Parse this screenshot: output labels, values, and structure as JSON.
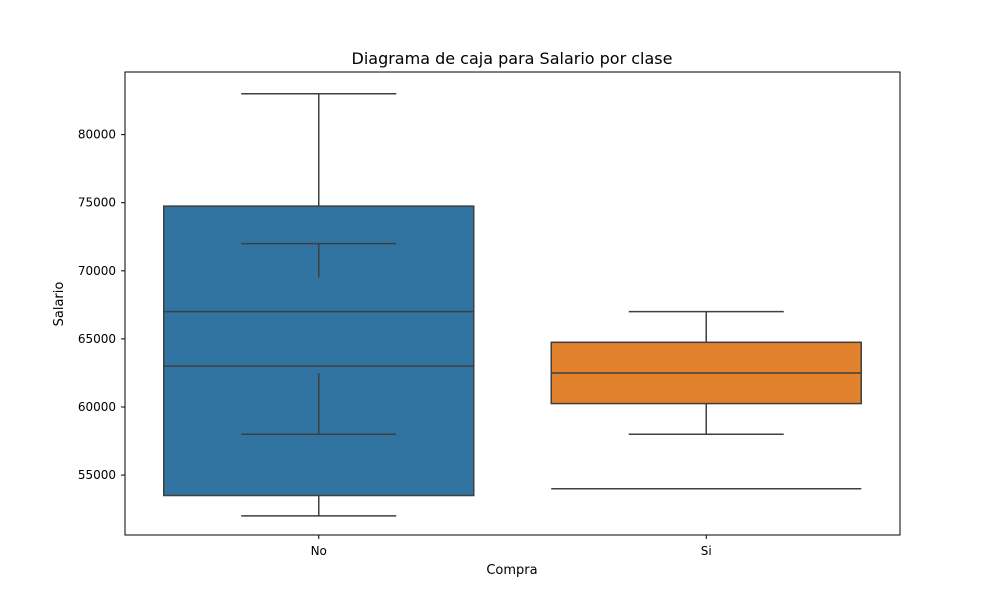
{
  "chart_data": {
    "type": "box",
    "title": "Diagrama de caja para Salario por clase",
    "xlabel": "Compra",
    "ylabel": "Salario",
    "ylim": [
      50600,
      84600
    ],
    "yticks": [
      55000,
      60000,
      65000,
      70000,
      75000,
      80000
    ],
    "grid": false,
    "legend": "none",
    "categories": [
      "No",
      "Si"
    ],
    "series": [
      {
        "category": "No",
        "color": "#3274a1",
        "q1": 53500,
        "q3": 74750,
        "levels": [
          63000,
          67000
        ],
        "whisker_segments": [
          {
            "from": 74750,
            "to": 83000,
            "cap": 83000
          },
          {
            "from": 53500,
            "to": 52000,
            "cap": 52000
          },
          {
            "from": 69500,
            "to": 72000,
            "cap": 72000
          },
          {
            "from": 62500,
            "to": 58000,
            "cap": 58000
          }
        ]
      },
      {
        "category": "Si",
        "color": "#e1812c",
        "q1": 60250,
        "q3": 64750,
        "levels": [
          62500
        ],
        "whisker_segments": [
          {
            "from": 64750,
            "to": 67000,
            "cap": 67000
          },
          {
            "from": 60250,
            "to": 58000,
            "cap": 58000
          }
        ],
        "extra_lines": [
          54000
        ]
      }
    ]
  }
}
